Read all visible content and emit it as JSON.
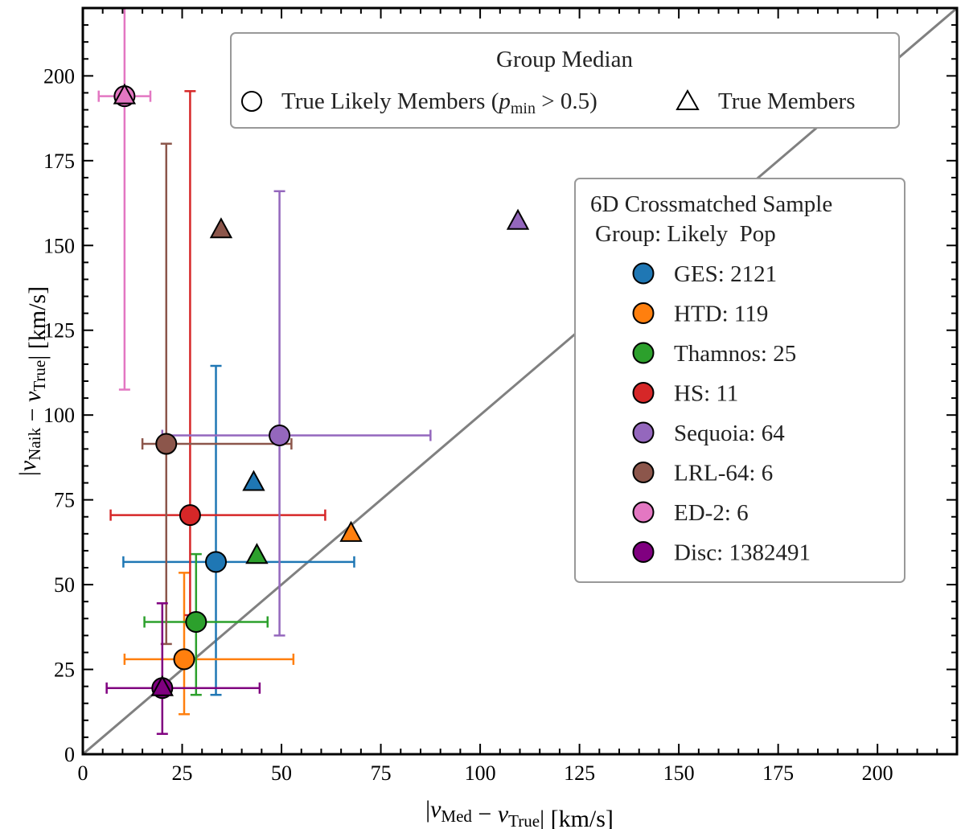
{
  "chart_data": {
    "type": "scatter",
    "xlabel": "|v_Med − v_True| [km/s]",
    "ylabel": "|v_Naik − v_True| [km/s]",
    "xlim": [
      0,
      220
    ],
    "ylim": [
      0,
      220
    ],
    "x_ticks": [
      0,
      25,
      50,
      75,
      100,
      125,
      150,
      175,
      200
    ],
    "y_ticks": [
      0,
      25,
      50,
      75,
      100,
      125,
      150,
      175,
      200
    ],
    "x_tick_labels": [
      "0",
      "25",
      "50",
      "75",
      "100",
      "125",
      "150",
      "175",
      "200"
    ],
    "y_tick_labels": [
      "0",
      "25",
      "50",
      "75",
      "100",
      "125",
      "150",
      "175",
      "200"
    ],
    "reference_line": {
      "type": "one-to-one",
      "color": "#808080"
    },
    "legend_markers": {
      "title": "Group Median",
      "circle_label": "True Likely Members (p_min > 0.5)",
      "triangle_label": "True Members",
      "placement": "top-center"
    },
    "legend_groups": {
      "title_line1": "6D Crossmatched Sample",
      "title_line2": "Group: Likely  Pop",
      "placement": "center-right"
    },
    "series": [
      {
        "name": "GES",
        "count": "2121",
        "label": "GES: 2121",
        "color": "#1f77b4",
        "circle": {
          "x": 33.5,
          "y": 56.7,
          "xerr_low": 10.2,
          "xerr_high": 68.3,
          "yerr_low": 17.5,
          "yerr_high": 114.5
        },
        "triangle": {
          "x": 43,
          "y": 80
        }
      },
      {
        "name": "HTD",
        "count": "119",
        "label": "HTD: 119",
        "color": "#ff7f0e",
        "circle": {
          "x": 25.5,
          "y": 28,
          "xerr_low": 10.5,
          "xerr_high": 53,
          "yerr_low": 11.8,
          "yerr_high": 53.5
        },
        "triangle": {
          "x": 67.5,
          "y": 65
        }
      },
      {
        "name": "Thamnos",
        "count": "25",
        "label": "Thamnos: 25",
        "color": "#2ca02c",
        "circle": {
          "x": 28.5,
          "y": 39,
          "xerr_low": 15.5,
          "xerr_high": 46.5,
          "yerr_low": 17.5,
          "yerr_high": 59
        },
        "triangle": {
          "x": 43.8,
          "y": 58.5
        }
      },
      {
        "name": "HS",
        "count": "11",
        "label": "HS: 11",
        "color": "#d62728",
        "circle": {
          "x": 27,
          "y": 70.5,
          "xerr_low": 7,
          "xerr_high": 61,
          "yerr_low": 41,
          "yerr_high": 195.5
        },
        "triangle": null
      },
      {
        "name": "Sequoia",
        "count": "64",
        "label": "Sequoia: 64",
        "color": "#9467bd",
        "circle": {
          "x": 49.5,
          "y": 94,
          "xerr_low": 20,
          "xerr_high": 87.5,
          "yerr_low": 35,
          "yerr_high": 166
        },
        "triangle": {
          "x": 109.5,
          "y": 157
        }
      },
      {
        "name": "LRL-64",
        "count": "6",
        "label": "LRL-64: 6",
        "color": "#8c564b",
        "circle": {
          "x": 21,
          "y": 91.5,
          "xerr_low": 15,
          "xerr_high": 52.5,
          "yerr_low": 32.5,
          "yerr_high": 180
        },
        "triangle": {
          "x": 34.8,
          "y": 154.5
        }
      },
      {
        "name": "ED-2",
        "count": "6",
        "label": "ED-2: 6",
        "color": "#e377c2",
        "circle": {
          "x": 10.5,
          "y": 194,
          "xerr_low": 4,
          "xerr_high": 17,
          "yerr_low": 107.5,
          "yerr_high": 220
        },
        "triangle": {
          "x": 10.5,
          "y": 194
        }
      },
      {
        "name": "Disc",
        "count": "1382491",
        "label": "Disc: 1382491",
        "color": "#800080",
        "circle": {
          "x": 20,
          "y": 19.5,
          "xerr_low": 6,
          "xerr_high": 44.5,
          "yerr_low": 6,
          "yerr_high": 44.5
        },
        "triangle": {
          "x": 20,
          "y": 19.5
        }
      }
    ]
  }
}
